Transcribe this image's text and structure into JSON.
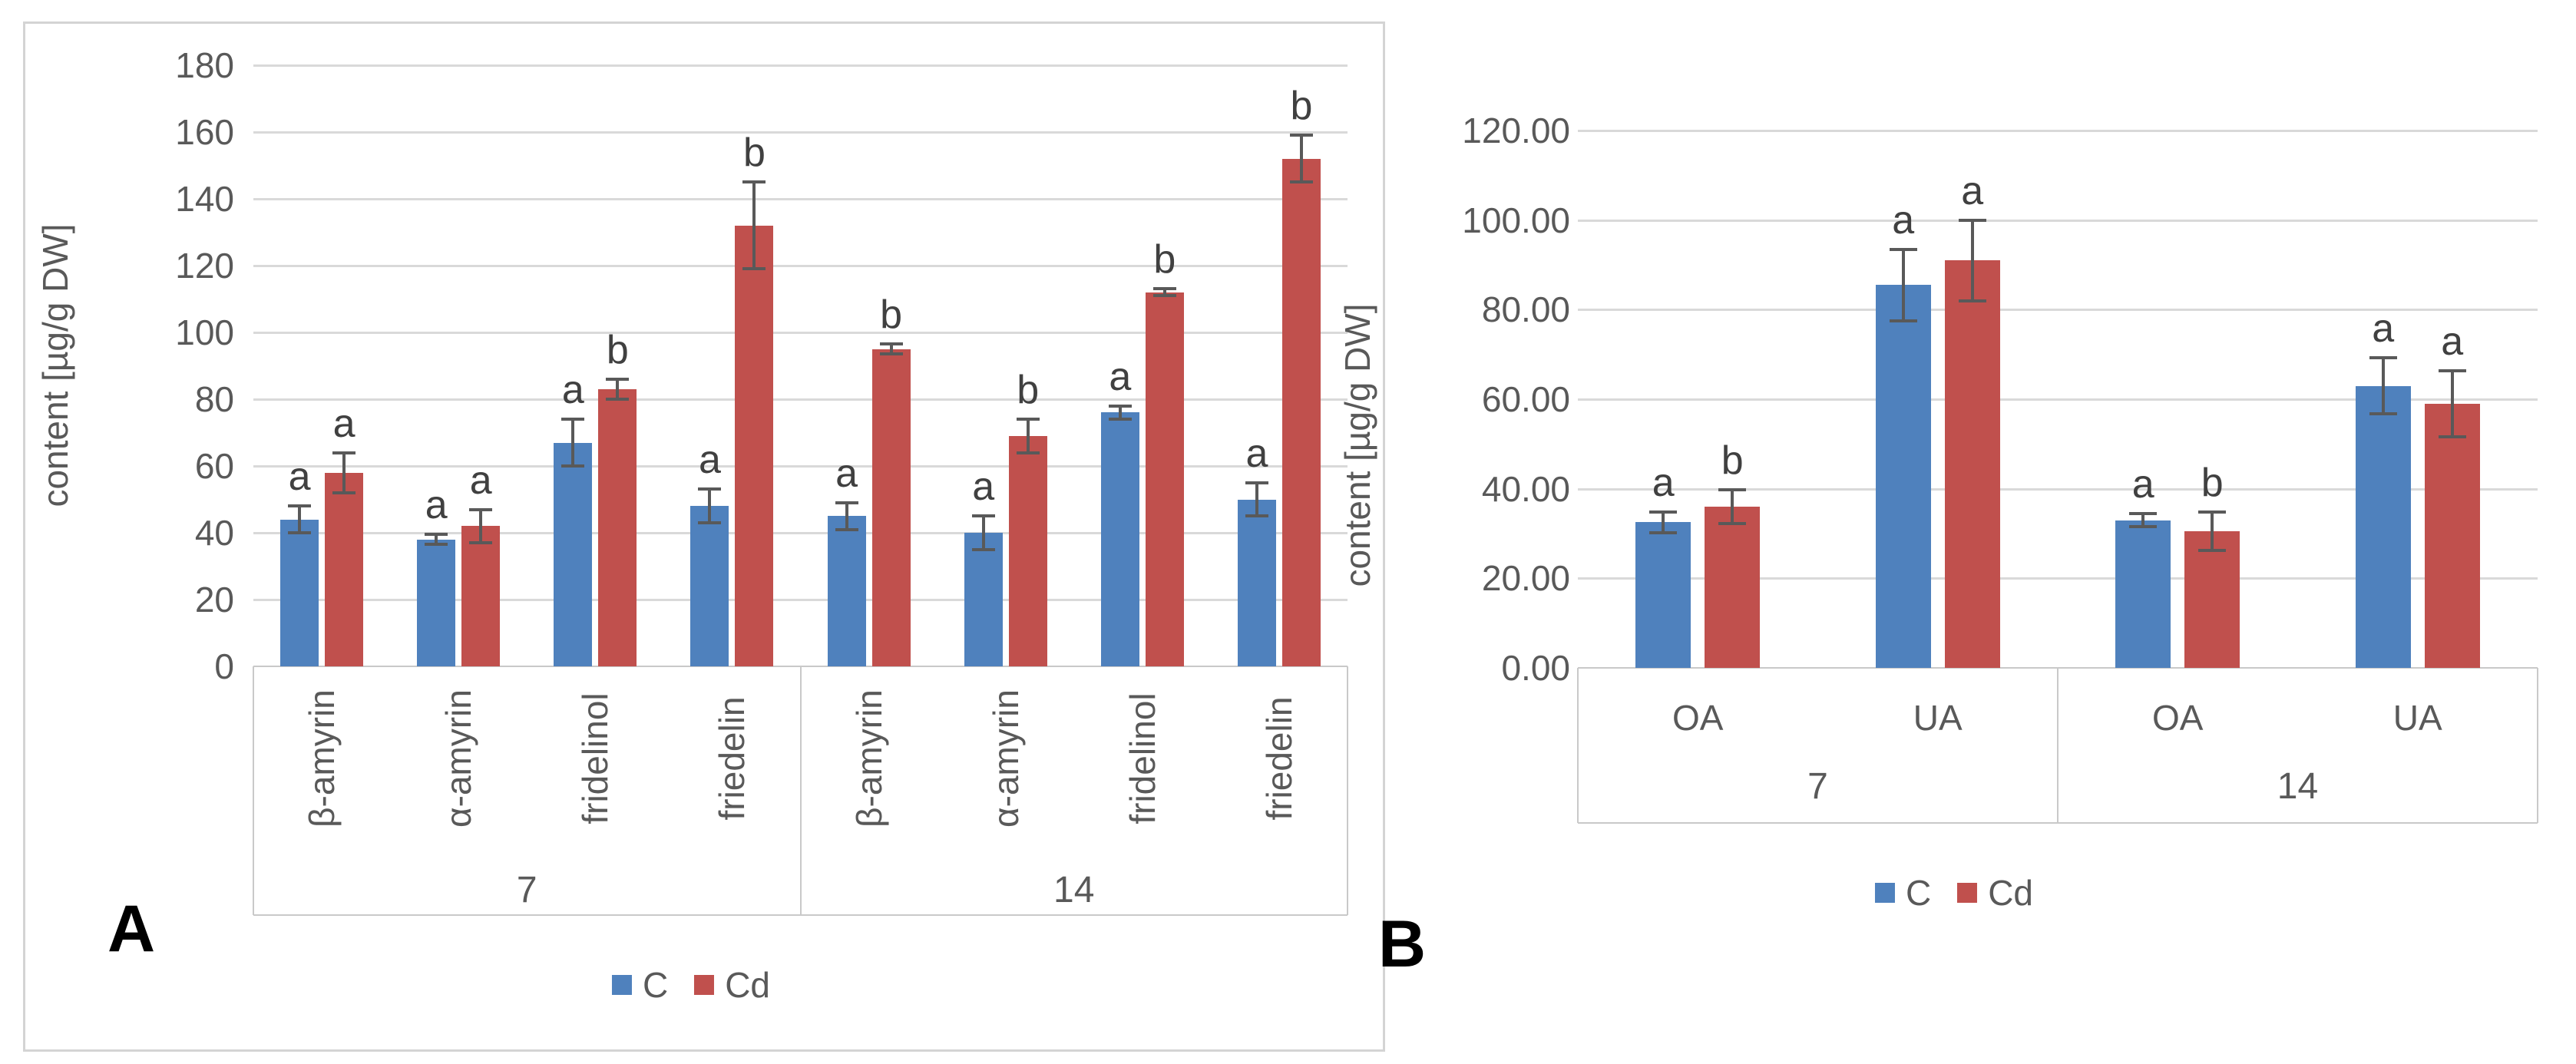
{
  "figure": {
    "background": "#ffffff",
    "panel_a_label": "A",
    "panel_b_label": "B"
  },
  "series_colors": {
    "C": "#4F81BD",
    "Cd": "#C0504D"
  },
  "chart_data": [
    {
      "id": "A",
      "type": "bar",
      "panel_label": "A",
      "ylabel": "content [µg/g DW]",
      "ylim": [
        0,
        180
      ],
      "ytick_step": 20,
      "ytick_decimals": 0,
      "grid": true,
      "legend_position": "bottom",
      "legend": [
        "C",
        "Cd"
      ],
      "colors": {
        "C": "#4F81BD",
        "Cd": "#C0504D"
      },
      "groups": [
        "7",
        "14"
      ],
      "categories": [
        "β-amyrin",
        "α-amyrin",
        "fridelinol",
        "friedelin",
        "β-amyrin",
        "α-amyrin",
        "fridelinol",
        "friedelin"
      ],
      "category_rotation": 90,
      "series": [
        {
          "name": "C",
          "values": [
            44,
            38,
            67,
            48,
            45,
            40,
            76,
            50
          ],
          "errors": [
            4,
            1.5,
            7,
            5,
            4,
            5,
            2,
            5
          ],
          "letters": [
            "a",
            "a",
            "a",
            "a",
            "a",
            "a",
            "a",
            "a"
          ]
        },
        {
          "name": "Cd",
          "values": [
            58,
            42,
            83,
            132,
            95,
            69,
            112,
            152
          ],
          "errors": [
            6,
            5,
            3,
            13,
            1.5,
            5,
            1,
            7
          ],
          "letters": [
            "a",
            "a",
            "b",
            "b",
            "b",
            "b",
            "b",
            "b"
          ]
        }
      ]
    },
    {
      "id": "B",
      "type": "bar",
      "panel_label": "B",
      "ylabel": "content [µg/g DW]",
      "ylim": [
        0,
        120
      ],
      "ytick_step": 20,
      "ytick_decimals": 2,
      "grid": true,
      "legend_position": "bottom",
      "legend": [
        "C",
        "Cd"
      ],
      "colors": {
        "C": "#4F81BD",
        "Cd": "#C0504D"
      },
      "groups": [
        "7",
        "14"
      ],
      "categories": [
        "OA",
        "UA",
        "OA",
        "UA"
      ],
      "category_rotation": 0,
      "series": [
        {
          "name": "C",
          "values": [
            32.5,
            85.5,
            33,
            63
          ],
          "errors": [
            2.3,
            8,
            1.5,
            6.3
          ],
          "letters": [
            "a",
            "a",
            "a",
            "a"
          ]
        },
        {
          "name": "Cd",
          "values": [
            36,
            91,
            30.5,
            59
          ],
          "errors": [
            3.8,
            9,
            4.3,
            7.4
          ],
          "letters": [
            "b",
            "a",
            "b",
            "a"
          ]
        }
      ]
    }
  ]
}
